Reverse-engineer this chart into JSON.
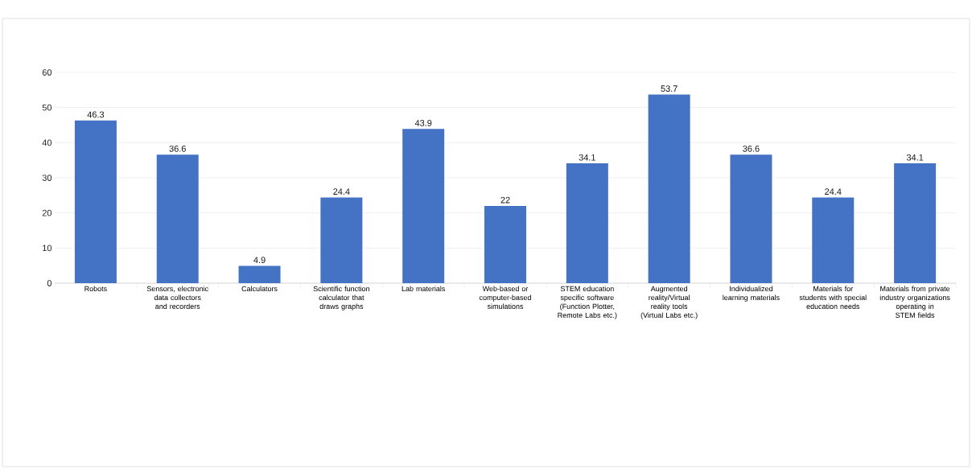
{
  "chart_data": {
    "type": "bar",
    "categories": [
      "Robots",
      "Sensors, electronic data collectors and recorders",
      "Calculators",
      "Scientific function calculator that draws graphs",
      "Lab materials",
      "Web-based or computer-based simulations",
      "STEM education specific software (Function Plotter, Remote Labs etc.)",
      "Augmented reality/Virtual reality tools (Virtual Labs etc.)",
      "Individualized learning materials",
      "Materials for students with special education needs",
      "Materials from private industry organizations operating in STEM fields"
    ],
    "values": [
      46.3,
      36.6,
      4.9,
      24.4,
      43.9,
      22,
      34.1,
      53.7,
      36.6,
      24.4,
      34.1
    ],
    "color": "#4472c4",
    "ylim": [
      0,
      60
    ],
    "yticks": [
      0,
      10,
      20,
      30,
      40,
      50,
      60
    ],
    "grid": "y",
    "data_labels": true
  }
}
